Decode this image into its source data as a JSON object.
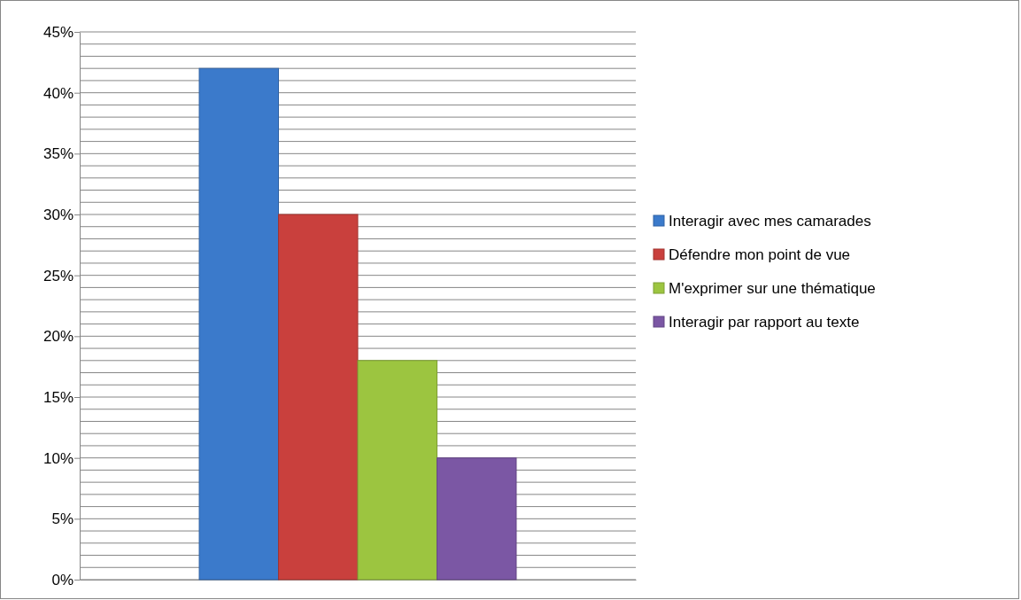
{
  "chart_data": {
    "type": "bar",
    "categories": [
      null
    ],
    "series": [
      {
        "name": "Interagir avec mes camarades",
        "color": "#3b7acb",
        "values": [
          42
        ]
      },
      {
        "name": "Défendre mon point de vue",
        "color": "#c9403d",
        "values": [
          30
        ]
      },
      {
        "name": "M'exprimer sur une thématique",
        "color": "#9cc540",
        "values": [
          18
        ]
      },
      {
        "name": "Interagir par rapport au texte",
        "color": "#7b57a4",
        "values": [
          10
        ]
      }
    ],
    "ylim": [
      0,
      45
    ],
    "yticks": [
      {
        "value": 0,
        "label": "0%"
      },
      {
        "value": 1,
        "label": null
      },
      {
        "value": 2,
        "label": null
      },
      {
        "value": 3,
        "label": null
      },
      {
        "value": 4,
        "label": null
      },
      {
        "value": 5,
        "label": "5%"
      },
      {
        "value": 6,
        "label": null
      },
      {
        "value": 7,
        "label": null
      },
      {
        "value": 8,
        "label": null
      },
      {
        "value": 9,
        "label": null
      },
      {
        "value": 10,
        "label": "10%"
      },
      {
        "value": 11,
        "label": null
      },
      {
        "value": 12,
        "label": null
      },
      {
        "value": 13,
        "label": null
      },
      {
        "value": 14,
        "label": null
      },
      {
        "value": 15,
        "label": "15%"
      },
      {
        "value": 16,
        "label": null
      },
      {
        "value": 17,
        "label": null
      },
      {
        "value": 18,
        "label": null
      },
      {
        "value": 19,
        "label": null
      },
      {
        "value": 20,
        "label": "20%"
      },
      {
        "value": 21,
        "label": null
      },
      {
        "value": 22,
        "label": null
      },
      {
        "value": 23,
        "label": null
      },
      {
        "value": 24,
        "label": null
      },
      {
        "value": 25,
        "label": "25%"
      },
      {
        "value": 26,
        "label": null
      },
      {
        "value": 27,
        "label": null
      },
      {
        "value": 28,
        "label": null
      },
      {
        "value": 29,
        "label": null
      },
      {
        "value": 30,
        "label": "30%"
      },
      {
        "value": 31,
        "label": null
      },
      {
        "value": 32,
        "label": null
      },
      {
        "value": 33,
        "label": null
      },
      {
        "value": 34,
        "label": null
      },
      {
        "value": 35,
        "label": "35%"
      },
      {
        "value": 36,
        "label": null
      },
      {
        "value": 37,
        "label": null
      },
      {
        "value": 38,
        "label": null
      },
      {
        "value": 39,
        "label": null
      },
      {
        "value": 40,
        "label": "40%"
      },
      {
        "value": 41,
        "label": null
      },
      {
        "value": 42,
        "label": null
      },
      {
        "value": 43,
        "label": null
      },
      {
        "value": 44,
        "label": null
      },
      {
        "value": 45,
        "label": "45%"
      }
    ],
    "grid": "y",
    "legend": "right"
  }
}
